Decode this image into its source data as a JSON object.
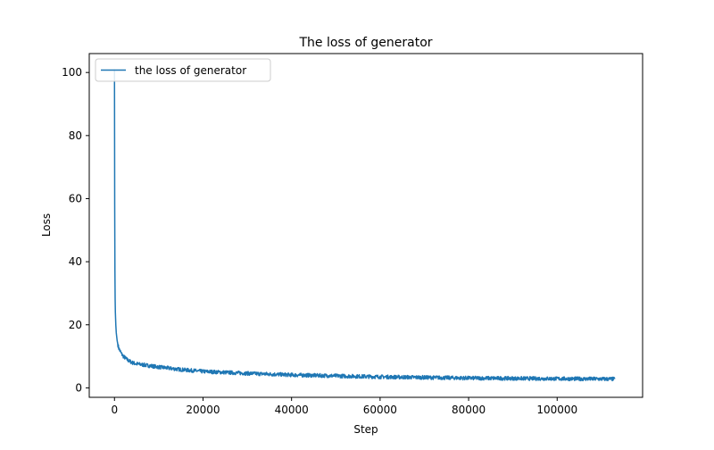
{
  "chart_data": {
    "type": "line",
    "title": "The loss of generator",
    "xlabel": "Step",
    "ylabel": "Loss",
    "xlim": [
      -5700,
      119300
    ],
    "ylim": [
      -3,
      106
    ],
    "xticks": [
      0,
      20000,
      40000,
      60000,
      80000,
      100000
    ],
    "yticks": [
      0,
      20,
      40,
      60,
      80,
      100
    ],
    "grid": false,
    "legend_position": "top-left",
    "series": [
      {
        "name": "the loss of generator",
        "color": "#1f77b4",
        "x": [
          0,
          50,
          100,
          150,
          200,
          300,
          400,
          600,
          800,
          1000,
          1500,
          2000,
          3000,
          4000,
          5000,
          7000,
          10000,
          15000,
          20000,
          25000,
          30000,
          40000,
          50000,
          60000,
          70000,
          80000,
          90000,
          100000,
          113000
        ],
        "y": [
          101,
          58,
          37,
          28,
          24,
          20,
          17.5,
          15,
          13.5,
          12.5,
          11,
          10,
          8.8,
          8,
          7.6,
          7.2,
          6.6,
          5.8,
          5.2,
          4.9,
          4.6,
          4.1,
          3.8,
          3.5,
          3.3,
          3.1,
          3.0,
          2.9,
          2.8
        ],
        "noise": 0.6
      }
    ]
  }
}
